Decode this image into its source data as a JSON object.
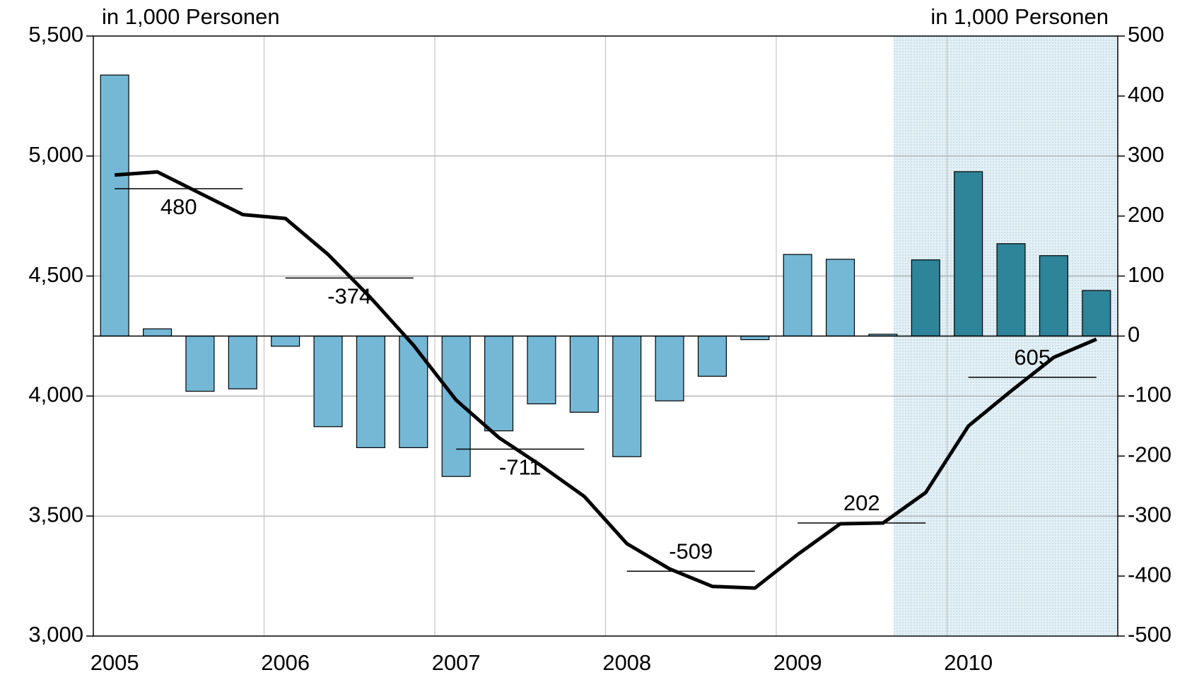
{
  "chart_data": {
    "type": "bar-line",
    "left_axis_title": "in 1,000 Personen",
    "right_axis_title": "in 1,000 Personen",
    "categories": [
      "2005",
      null,
      null,
      null,
      "2006",
      null,
      null,
      null,
      "2007",
      null,
      null,
      null,
      "2008",
      null,
      null,
      null,
      "2009",
      null,
      null,
      null,
      "2010",
      null,
      null,
      null
    ],
    "bars": {
      "axis": "y2",
      "values": [
        435,
        12,
        -92,
        -88,
        -17,
        -151,
        -186,
        -186,
        -234,
        -158,
        -113,
        -127,
        -201,
        -108,
        -67,
        -6,
        136,
        128,
        3,
        127,
        274,
        154,
        134,
        76
      ],
      "colors": [
        "#74b8d6",
        "#74b8d6",
        "#74b8d6",
        "#74b8d6",
        "#74b8d6",
        "#74b8d6",
        "#74b8d6",
        "#74b8d6",
        "#74b8d6",
        "#74b8d6",
        "#74b8d6",
        "#74b8d6",
        "#74b8d6",
        "#74b8d6",
        "#74b8d6",
        "#74b8d6",
        "#74b8d6",
        "#74b8d6",
        "#74b8d6",
        "#2e8499",
        "#2e8499",
        "#2e8499",
        "#2e8499",
        "#2e8499"
      ]
    },
    "line": {
      "color": "#000000",
      "values": [
        4921,
        4934,
        4845,
        4756,
        4740,
        4590,
        4409,
        4212,
        3983,
        3827,
        3709,
        3582,
        3385,
        3280,
        3207,
        3200,
        3340,
        3468,
        3471,
        3598,
        3875,
        4021,
        4161,
        4237
      ]
    },
    "annotations": [
      {
        "label": "480",
        "value": 4864
      },
      {
        "label": "-374",
        "value": 4492
      },
      {
        "label": "-711",
        "value": 3779
      },
      {
        "label": "-509",
        "value": 3270
      },
      {
        "label": "202",
        "value": 3471
      },
      {
        "label": "605",
        "value": 4078
      }
    ],
    "ylim": [
      3000,
      5500
    ],
    "yticks": [
      {
        "value": 3000,
        "label": "3,000"
      },
      {
        "value": 3500,
        "label": "3,500"
      },
      {
        "value": 4000,
        "label": "4,000"
      },
      {
        "value": 4500,
        "label": "4,500"
      },
      {
        "value": 5000,
        "label": "5,000"
      },
      {
        "value": 5500,
        "label": "5,500"
      }
    ],
    "y2lim": [
      -500,
      500
    ],
    "y2ticks": [
      -500,
      -400,
      -300,
      -200,
      -100,
      0,
      100,
      200,
      300,
      400,
      500
    ],
    "grid": true
  }
}
